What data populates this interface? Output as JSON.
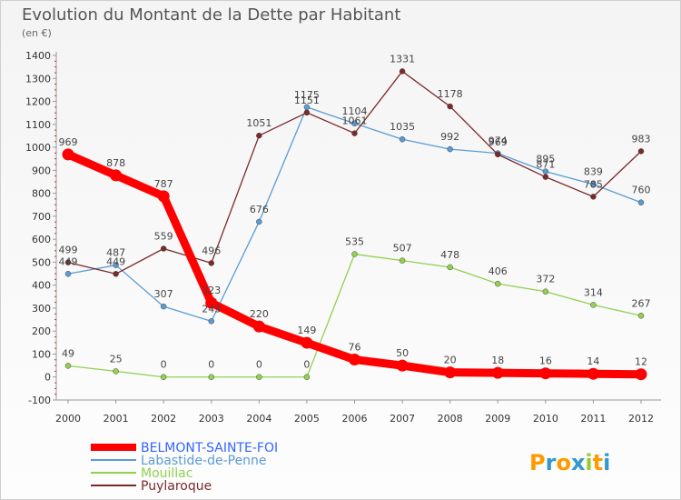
{
  "chart_data": {
    "type": "line",
    "title": "Evolution du Montant de la Dette par Habitant",
    "subtitle": "(en €)",
    "x": [
      "2000",
      "2001",
      "2002",
      "2003",
      "2004",
      "2005",
      "2006",
      "2007",
      "2008",
      "2009",
      "2010",
      "2011",
      "2012"
    ],
    "yticks": [
      -100,
      0,
      100,
      200,
      300,
      400,
      500,
      600,
      700,
      800,
      900,
      1000,
      1100,
      1200,
      1300,
      1400
    ],
    "ylim": [
      -100,
      1400
    ],
    "grid": false,
    "legend_position": "bottom-left",
    "series": [
      {
        "name": "BELMONT-SAINTE-FOI",
        "color": "#ff0000",
        "values": [
          969,
          878,
          787,
          323,
          220,
          149,
          76,
          50,
          20,
          18,
          16,
          14,
          12
        ]
      },
      {
        "name": "Labastide-de-Penne",
        "color": "#5b9bd5",
        "values": [
          449,
          487,
          307,
          243,
          676,
          1175,
          1104,
          1035,
          992,
          974,
          895,
          839,
          760
        ]
      },
      {
        "name": "Mouillac",
        "color": "#92d050",
        "values": [
          49,
          25,
          0,
          0,
          0,
          0,
          535,
          507,
          478,
          406,
          372,
          314,
          267
        ]
      },
      {
        "name": "Puylaroque",
        "color": "#7b2a2a",
        "values": [
          499,
          449,
          559,
          496,
          1051,
          1151,
          1061,
          1331,
          1178,
          969,
          871,
          785,
          983
        ]
      }
    ],
    "data_labels": [
      {
        "series": 0,
        "labels": [
          "969",
          "878",
          "787",
          "323",
          "220",
          "149",
          "76",
          "50",
          "20",
          "18",
          "16",
          "14",
          "12"
        ]
      },
      {
        "series": 1,
        "labels": [
          "449",
          "487",
          "307",
          "243",
          "676",
          "1175",
          "1104",
          "1035",
          "992",
          "974",
          "895",
          "839",
          "760"
        ]
      },
      {
        "series": 2,
        "labels": [
          "49",
          "25",
          "0",
          "0",
          "0",
          "0",
          "535",
          "507",
          "478",
          "406",
          "372",
          "314",
          "267"
        ]
      },
      {
        "series": 3,
        "labels": [
          "499",
          "449",
          "559",
          "496",
          "1051",
          "1151",
          "1061",
          "1331",
          "1178",
          "969",
          "871",
          "785",
          "983"
        ]
      }
    ]
  },
  "brand": {
    "name": "Proxiti",
    "letters": [
      "P",
      "r",
      "o",
      "x",
      "i",
      "t",
      "i"
    ],
    "colors": [
      "#ff9900",
      "#3399cc",
      "#ff9900",
      "#3399cc",
      "#99cc33",
      "#ff9900",
      "#3399cc"
    ]
  }
}
